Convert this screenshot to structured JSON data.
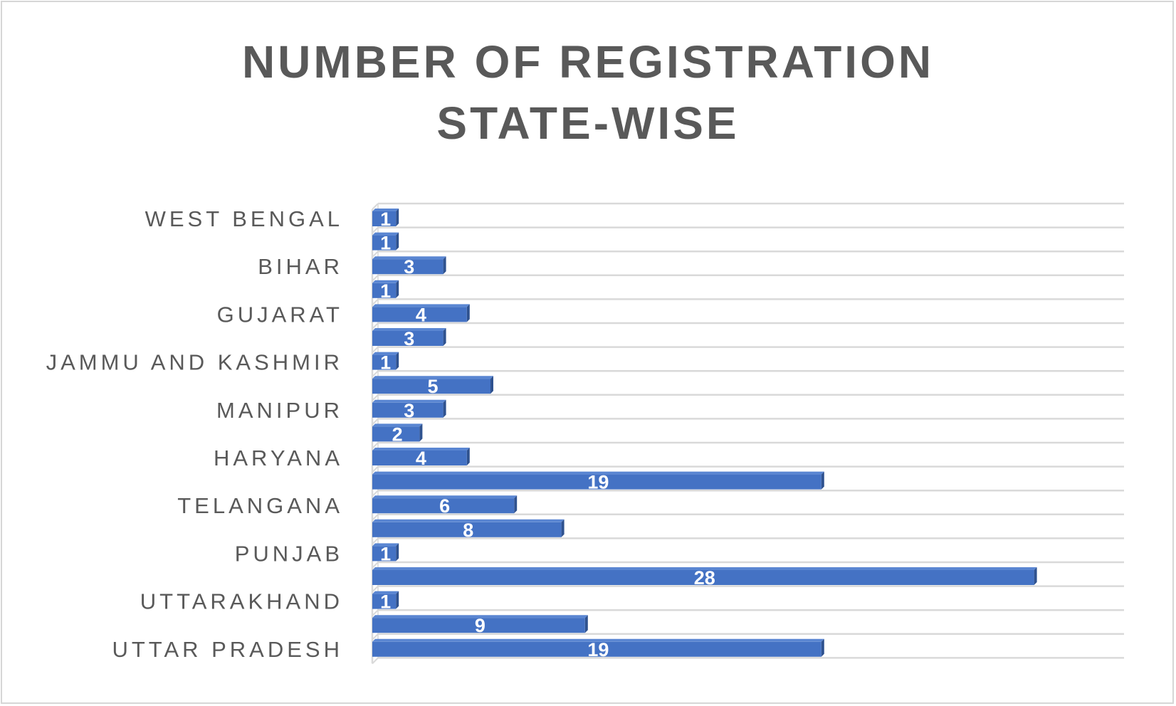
{
  "chart_data": {
    "type": "bar",
    "orientation": "horizontal",
    "style": "3d-clustered-bar",
    "title": "NUMBER OF REGISTRATION\nSTATE-WISE",
    "categories": [
      "WEST BENGAL",
      "",
      "BIHAR",
      "",
      "GUJARAT",
      "",
      "JAMMU AND KASHMIR",
      "",
      "MANIPUR",
      "",
      "HARYANA",
      "",
      "TELANGANA",
      "",
      "PUNJAB",
      "",
      "UTTARAKHAND",
      "",
      "UTTAR PRADESH"
    ],
    "values": [
      1,
      1,
      3,
      1,
      4,
      3,
      1,
      5,
      3,
      2,
      4,
      19,
      6,
      8,
      1,
      28,
      1,
      9,
      19
    ],
    "data_labels": [
      "1",
      "1",
      "3",
      "1",
      "4",
      "3",
      "1",
      "5",
      "3",
      "2",
      "4",
      "19",
      "6",
      "8",
      "1",
      "28",
      "1",
      "9",
      "19"
    ],
    "xlim": [
      0,
      30
    ],
    "grid": true,
    "legend": "none",
    "colors": {
      "bar_front": "#4472c4",
      "bar_side": "#2f528f",
      "bar_top": "#5a86d2",
      "grid": "#d9d9d9",
      "text": "#595959",
      "data_label": "#ffffff"
    }
  }
}
